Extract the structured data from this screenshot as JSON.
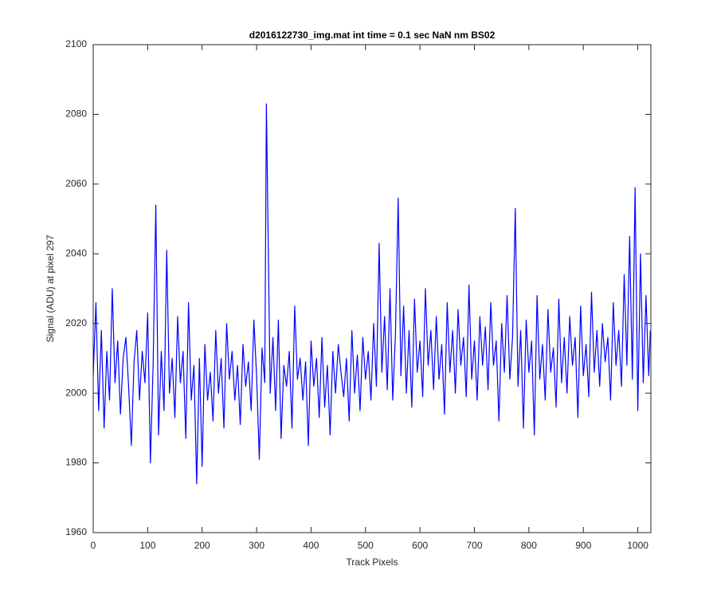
{
  "chart_data": {
    "type": "line",
    "title": "d2016122730_img.mat int time = 0.1 sec  NaN nm BS02",
    "xlabel": "Track Pixels",
    "ylabel": "Signal (ADU) at pixel 297",
    "xlim": [
      0,
      1024
    ],
    "ylim": [
      1960,
      2100
    ],
    "xticks": [
      0,
      100,
      200,
      300,
      400,
      500,
      600,
      700,
      800,
      900,
      1000
    ],
    "yticks": [
      1960,
      1980,
      2000,
      2020,
      2040,
      2060,
      2080,
      2100
    ],
    "grid": false,
    "x": [
      0,
      5,
      10,
      15,
      20,
      25,
      30,
      35,
      40,
      45,
      50,
      55,
      60,
      65,
      70,
      75,
      80,
      85,
      90,
      95,
      100,
      105,
      110,
      115,
      120,
      125,
      130,
      135,
      140,
      145,
      150,
      155,
      160,
      165,
      170,
      175,
      180,
      185,
      190,
      195,
      200,
      205,
      210,
      215,
      220,
      225,
      230,
      235,
      240,
      245,
      250,
      255,
      260,
      265,
      270,
      275,
      280,
      285,
      290,
      295,
      300,
      305,
      310,
      315,
      318,
      325,
      330,
      335,
      340,
      345,
      350,
      355,
      360,
      365,
      370,
      375,
      380,
      385,
      390,
      395,
      400,
      405,
      410,
      415,
      420,
      425,
      430,
      435,
      440,
      445,
      450,
      455,
      460,
      465,
      470,
      475,
      480,
      485,
      490,
      495,
      500,
      505,
      510,
      515,
      520,
      525,
      530,
      535,
      540,
      545,
      550,
      555,
      560,
      565,
      570,
      575,
      580,
      585,
      590,
      595,
      600,
      605,
      610,
      615,
      620,
      625,
      630,
      635,
      640,
      645,
      650,
      655,
      660,
      665,
      670,
      675,
      680,
      685,
      690,
      695,
      700,
      705,
      710,
      715,
      720,
      725,
      730,
      735,
      740,
      745,
      750,
      755,
      760,
      765,
      770,
      775,
      780,
      785,
      790,
      795,
      800,
      805,
      810,
      815,
      820,
      825,
      830,
      835,
      840,
      845,
      850,
      855,
      860,
      865,
      870,
      875,
      880,
      885,
      890,
      895,
      900,
      905,
      910,
      915,
      920,
      925,
      930,
      935,
      940,
      945,
      950,
      955,
      960,
      965,
      970,
      975,
      980,
      985,
      990,
      995,
      1000,
      1005,
      1010,
      1015,
      1020,
      1023
    ],
    "series": [
      {
        "color": "#0000ff",
        "values": [
          2005,
          2026,
          1995,
          2018,
          1990,
          2012,
          1998,
          2030,
          2003,
          2015,
          1994,
          2010,
          2016,
          2002,
          1985,
          2009,
          2018,
          1998,
          2012,
          2003,
          2023,
          1980,
          2008,
          2054,
          1988,
          2012,
          1995,
          2041,
          2000,
          2010,
          1993,
          2022,
          2003,
          2012,
          1987,
          2026,
          1998,
          2008,
          1974,
          2010,
          1979,
          2014,
          1998,
          2006,
          1992,
          2018,
          2000,
          2010,
          1990,
          2020,
          2004,
          2012,
          1998,
          2008,
          1991,
          2014,
          2002,
          2009,
          1995,
          2021,
          2005,
          1981,
          2013,
          2003,
          2083,
          2000,
          2016,
          1995,
          2021,
          1987,
          2008,
          2002,
          2012,
          1990,
          2025,
          2004,
          2010,
          1998,
          2009,
          1985,
          2015,
          2002,
          2010,
          1993,
          2016,
          1996,
          2008,
          1988,
          2012,
          2000,
          2014,
          2006,
          1999,
          2010,
          1992,
          2018,
          2000,
          2011,
          1995,
          2016,
          2004,
          2012,
          1998,
          2020,
          2002,
          2043,
          2006,
          2022,
          2001,
          2030,
          1998,
          2017,
          2056,
          2005,
          2025,
          2000,
          2018,
          1996,
          2027,
          2006,
          2015,
          1999,
          2030,
          2008,
          2018,
          2001,
          2022,
          2004,
          2014,
          1994,
          2026,
          2006,
          2018,
          2000,
          2024,
          2008,
          2016,
          1999,
          2031,
          2004,
          2015,
          1998,
          2022,
          2008,
          2019,
          2001,
          2026,
          2008,
          2015,
          1992,
          2020,
          2006,
          2028,
          2004,
          2016,
          2053,
          2002,
          2018,
          1990,
          2021,
          2006,
          2015,
          1988,
          2028,
          2004,
          2014,
          1998,
          2024,
          2006,
          2013,
          1996,
          2027,
          2003,
          2016,
          2000,
          2022,
          2008,
          2016,
          1993,
          2025,
          2005,
          2014,
          1999,
          2029,
          2006,
          2018,
          2002,
          2020,
          2009,
          2016,
          1998,
          2026,
          2008,
          2018,
          2002,
          2034,
          2008,
          2045,
          2004,
          2059,
          1995,
          2040,
          2003,
          2028,
          2005,
          2018
        ]
      }
    ]
  }
}
